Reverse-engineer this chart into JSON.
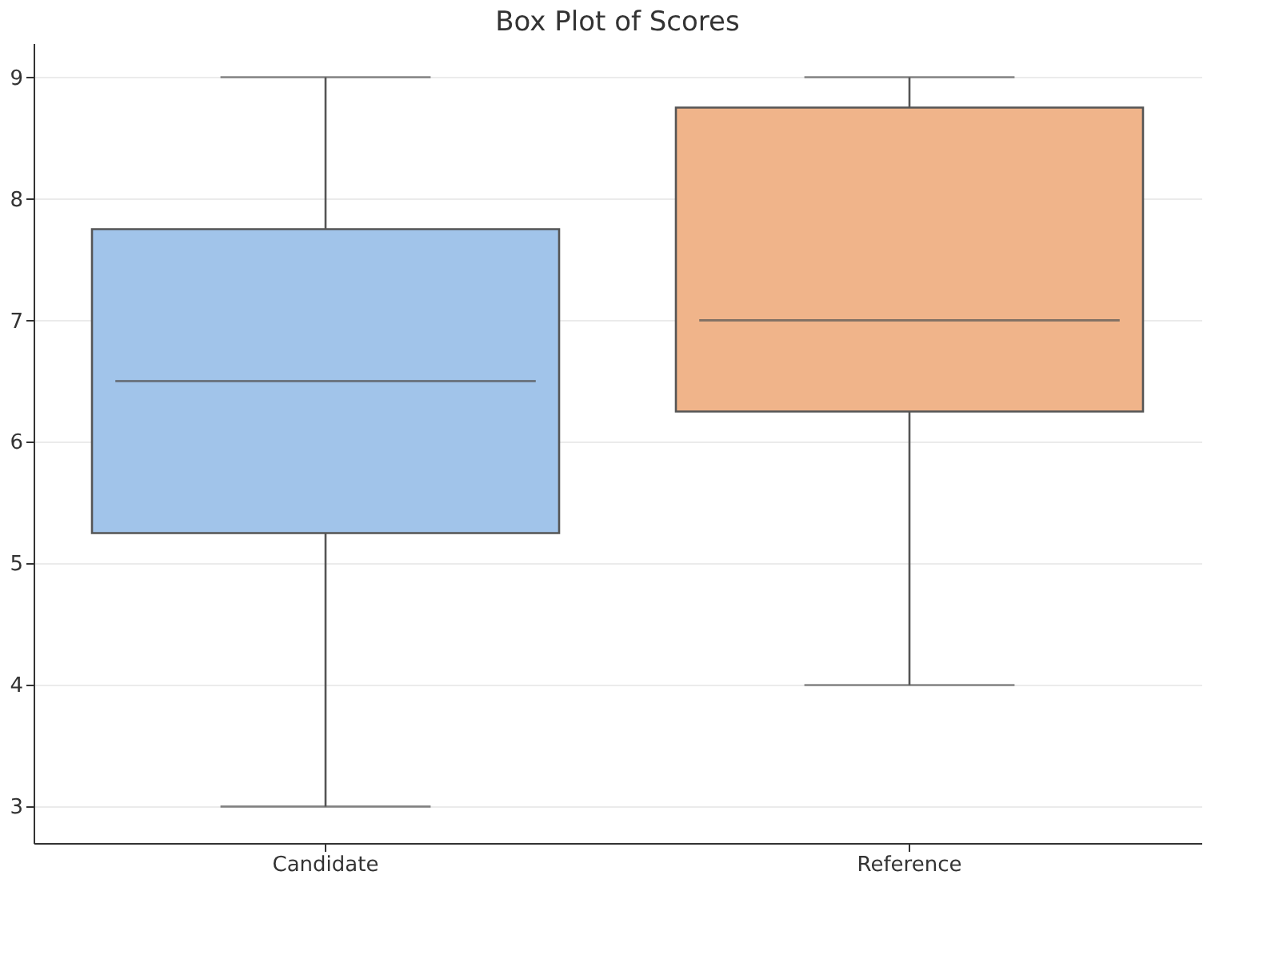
{
  "chart_data": {
    "type": "box",
    "title": "Box Plot of Scores",
    "categories": [
      "Candidate",
      "Reference"
    ],
    "boxes": [
      {
        "low": 3,
        "q1": 5.25,
        "median": 6.5,
        "q3": 7.75,
        "high": 9
      },
      {
        "low": 4,
        "q1": 6.25,
        "median": 7,
        "q3": 8.75,
        "high": 9
      }
    ],
    "colors": [
      "#a1c4ea",
      "#f0b48a"
    ],
    "ylim": [
      2.7,
      9.28
    ],
    "yticks": [
      3,
      4,
      5,
      6,
      7,
      8,
      9
    ],
    "grid": "y"
  }
}
